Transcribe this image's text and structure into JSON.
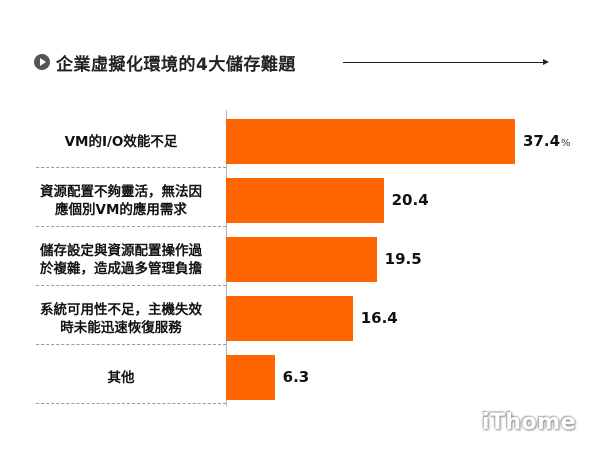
{
  "chart_data": {
    "type": "bar",
    "orientation": "horizontal",
    "title": "企業虛擬化環境的4大儲存難題",
    "categories": [
      [
        "VM的I/O效能不足"
      ],
      [
        "資源配置不夠靈活，無法因",
        "應個別VM的應用需求"
      ],
      [
        "儲存設定與資源配置操作過",
        "於複雜，造成過多管理負擔"
      ],
      [
        "系統可用性不足，主機失效",
        "時未能迅速恢復服務"
      ],
      [
        "其他"
      ]
    ],
    "values": [
      37.4,
      20.4,
      19.5,
      16.4,
      6.3
    ],
    "value_labels": [
      "37.4",
      "20.4",
      "19.5",
      "16.4",
      "6.3"
    ],
    "unit": "%",
    "xlim": [
      0,
      37.4
    ],
    "bar_color": "#ff6600",
    "grid": false,
    "legend": "none"
  },
  "watermark": "iThome"
}
